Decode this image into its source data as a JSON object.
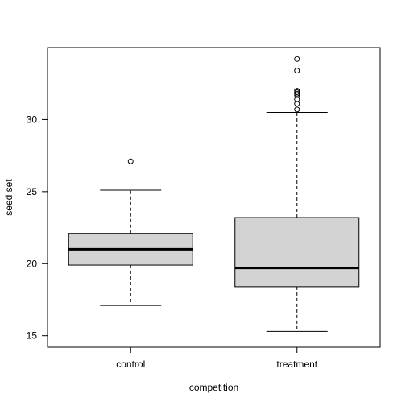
{
  "chart_data": {
    "type": "box",
    "title": "",
    "xlabel": "competition",
    "ylabel": "seed set",
    "ylim": [
      14.2,
      35.0
    ],
    "yticks": [
      15,
      20,
      25,
      30
    ],
    "grid": false,
    "categories": [
      "control",
      "treatment"
    ],
    "boxes": [
      {
        "name": "control",
        "whisker_low": 17.1,
        "q1": 19.9,
        "median": 21.0,
        "q3": 22.1,
        "whisker_high": 25.1,
        "outliers": [
          27.1
        ]
      },
      {
        "name": "treatment",
        "whisker_low": 15.3,
        "q1": 18.4,
        "median": 19.7,
        "q3": 23.2,
        "whisker_high": 30.5,
        "outliers": [
          30.7,
          31.1,
          31.4,
          31.7,
          31.8,
          31.9,
          32.0,
          33.4,
          34.2
        ]
      }
    ],
    "box_fill": "#d3d3d3"
  }
}
